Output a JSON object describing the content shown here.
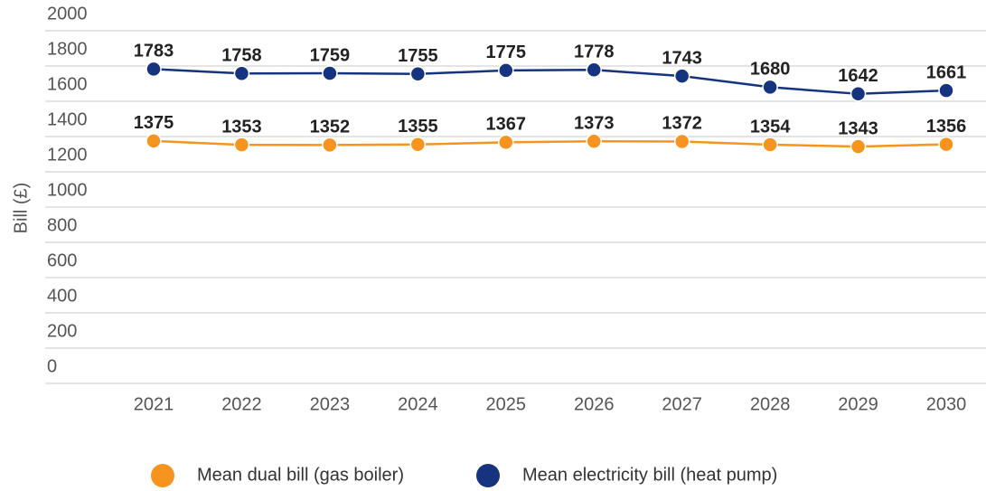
{
  "chart_data": {
    "type": "line",
    "y_label": "Bill (£)",
    "categories": [
      "2021",
      "2022",
      "2023",
      "2024",
      "2025",
      "2026",
      "2027",
      "2028",
      "2029",
      "2030"
    ],
    "series": [
      {
        "name": "Mean dual bill (gas boiler)",
        "color": "#f7941d",
        "values": [
          1375,
          1353,
          1352,
          1355,
          1367,
          1373,
          1372,
          1354,
          1343,
          1356
        ]
      },
      {
        "name": "Mean electricity bill (heat pump)",
        "color": "#15337e",
        "values": [
          1783,
          1758,
          1759,
          1755,
          1775,
          1778,
          1743,
          1680,
          1642,
          1661
        ]
      }
    ],
    "ylim": [
      0,
      2000
    ],
    "yticks": [
      0,
      200,
      400,
      600,
      800,
      1000,
      1200,
      1400,
      1600,
      1800,
      2000
    ],
    "grid": true
  }
}
